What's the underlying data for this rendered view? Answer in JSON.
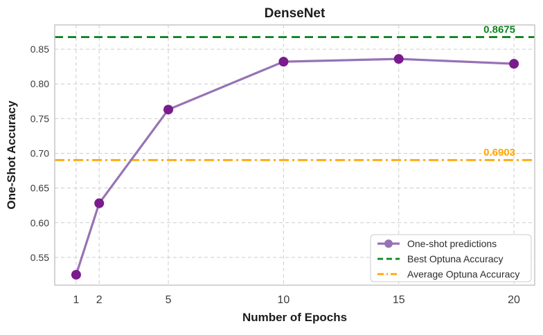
{
  "figure": {
    "title": "DenseNet",
    "xlabel": "Number of Epochs",
    "ylabel": "One-Shot Accuracy"
  },
  "chart_data": {
    "type": "line",
    "title": "DenseNet",
    "xlabel": "Number of Epochs",
    "ylabel": "One-Shot Accuracy",
    "x": [
      1,
      2,
      5,
      10,
      15,
      20
    ],
    "series": [
      {
        "name": "One-shot predictions",
        "values": [
          0.525,
          0.628,
          0.763,
          0.832,
          0.836,
          0.829
        ],
        "color": "#9673b4",
        "marker_color": "#7a1b8e",
        "marker": "circle",
        "style": "solid"
      }
    ],
    "reference_lines": [
      {
        "name": "Best Optuna Accuracy",
        "value": 0.8675,
        "label": "0.8675",
        "color": "#0e8420",
        "dash": "dashed"
      },
      {
        "name": "Average Optuna Accuracy",
        "value": 0.6903,
        "label": "0.6903",
        "color": "#ffa500",
        "dash": "dashdot"
      }
    ],
    "x_ticks": [
      1,
      2,
      5,
      10,
      15,
      20
    ],
    "y_ticks": [
      0.55,
      0.6,
      0.65,
      0.7,
      0.75,
      0.8,
      0.85
    ],
    "xlim": [
      0.07,
      20.9
    ],
    "ylim": [
      0.51,
      0.885
    ],
    "grid": true,
    "grid_style": "dashed",
    "legend_position": "lower right",
    "legend_entries": [
      "One-shot predictions",
      "Best Optuna Accuracy",
      "Average Optuna Accuracy"
    ]
  },
  "colors": {
    "background": "#ffffff",
    "grid": "#cccccc",
    "spine": "#c6c6c6",
    "title_text": "#1b1b1b",
    "tick_text": "#3a3a3a",
    "legend_text": "#2b2b2b",
    "legend_border": "#cccccc"
  }
}
